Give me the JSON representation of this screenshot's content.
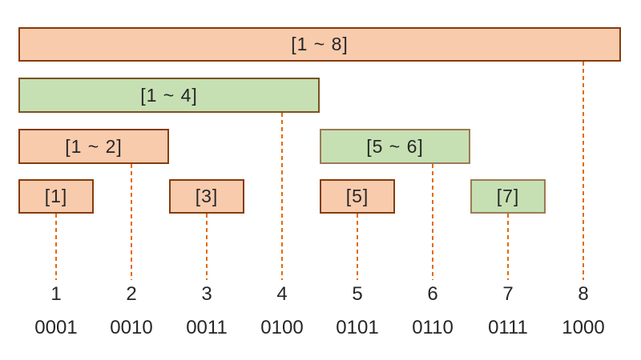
{
  "diagram": {
    "type": "interval-tree",
    "palette": {
      "orange_fill": "#F8CBAD",
      "orange_border": "#843C0C",
      "green_fill": "#C6E0B4",
      "green_border": "#7B5221",
      "green_border_light": "#9C7A54",
      "connector": "#E26B0A",
      "text": "#262626"
    },
    "nodes": {
      "n18": {
        "label": "[1 ~ 8]",
        "range_start": 1,
        "range_end": 8,
        "color": "orange",
        "anchor_index": 8
      },
      "n14": {
        "label": "[1 ~ 4]",
        "range_start": 1,
        "range_end": 4,
        "color": "green",
        "anchor_index": 4
      },
      "n12": {
        "label": "[1 ~ 2]",
        "range_start": 1,
        "range_end": 2,
        "color": "orange",
        "anchor_index": 2
      },
      "n56": {
        "label": "[5 ~ 6]",
        "range_start": 5,
        "range_end": 6,
        "color": "green",
        "anchor_index": 6
      },
      "n1": {
        "label": "[1]",
        "range_start": 1,
        "range_end": 1,
        "color": "orange",
        "anchor_index": 1
      },
      "n3": {
        "label": "[3]",
        "range_start": 3,
        "range_end": 3,
        "color": "orange",
        "anchor_index": 3
      },
      "n5": {
        "label": "[5]",
        "range_start": 5,
        "range_end": 5,
        "color": "orange",
        "anchor_index": 5
      },
      "n7": {
        "label": "[7]",
        "range_start": 7,
        "range_end": 7,
        "color": "green",
        "anchor_index": 7
      }
    },
    "axis": {
      "indices": [
        "1",
        "2",
        "3",
        "4",
        "5",
        "6",
        "7",
        "8"
      ],
      "binary": [
        "0001",
        "0010",
        "0011",
        "0100",
        "0101",
        "0110",
        "0111",
        "1000"
      ]
    }
  }
}
